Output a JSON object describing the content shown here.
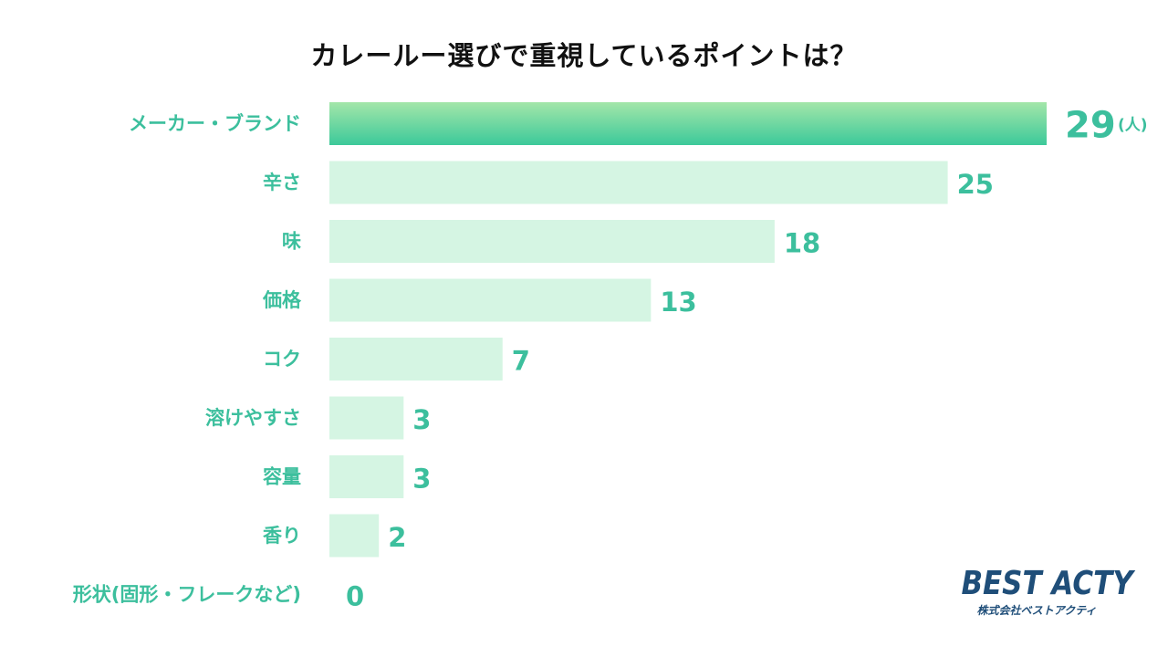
{
  "chart_data": {
    "type": "bar",
    "orientation": "horizontal",
    "title": "カレールー選びで重視しているポイントは？",
    "categories": [
      "メーカー・ブランド",
      "辛さ",
      "味",
      "価格",
      "コク",
      "溶けやすさ",
      "容量",
      "香り",
      "形状(固形・フレークなど)"
    ],
    "values": [
      29,
      25,
      18,
      13,
      7,
      3,
      3,
      2,
      0
    ],
    "unit": "(人)",
    "xlim": [
      0,
      29
    ],
    "grid": false,
    "legend": "none",
    "highlight_index": 0
  },
  "colors": {
    "highlight_top": "#a3e6a9",
    "highlight_bottom": "#3cc99a",
    "bar": "#d5f5e3",
    "label": "#3cbf9d",
    "title": "#111111",
    "brand": "#1f4e79"
  },
  "brand": {
    "name": "BEST ACTY",
    "subtitle": "株式会社ベストアクティ"
  }
}
